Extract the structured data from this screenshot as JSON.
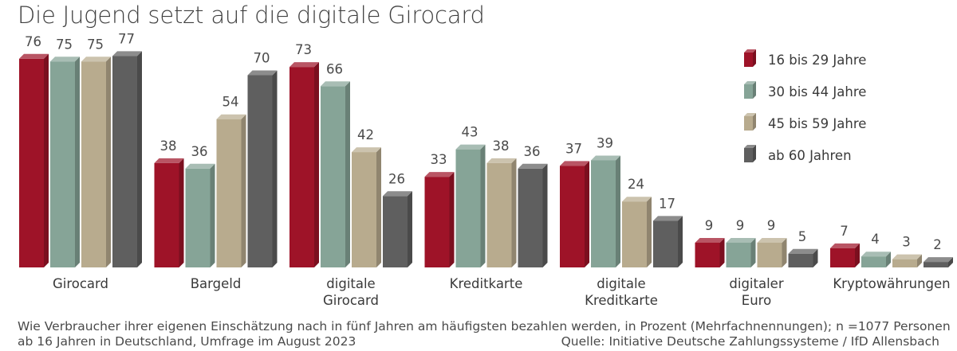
{
  "title": "Die Jugend setzt auf die digitale Girocard",
  "footnote": {
    "line1": "Wie Verbraucher ihrer eigenen Einschätzung nach in fünf Jahren am häufigsten bezahlen werden, in Prozent (Mehrfachnennungen); n =1077 Personen",
    "line2": "ab 16 Jahren in Deutschland, Umfrage im August 2023",
    "source": "Quelle: Initiative Deutsche Zahlungssysteme / IfD Allensbach"
  },
  "chart_data": {
    "type": "bar",
    "title": "Die Jugend setzt auf die digitale Girocard",
    "categories": [
      [
        "Girocard"
      ],
      [
        "Bargeld"
      ],
      [
        "digitale",
        "Girocard"
      ],
      [
        "Kreditkarte"
      ],
      [
        "digitale",
        "Kreditkarte"
      ],
      [
        "digitaler",
        "Euro"
      ],
      [
        "Kryptowährungen"
      ]
    ],
    "series": [
      {
        "name": "16 bis 29 Jahre",
        "color": "#9e1328",
        "values": [
          76,
          38,
          73,
          33,
          37,
          9,
          7
        ]
      },
      {
        "name": "30 bis 44 Jahre",
        "color": "#86a497",
        "values": [
          75,
          36,
          66,
          43,
          39,
          9,
          4
        ]
      },
      {
        "name": "45 bis 59 Jahre",
        "color": "#b8ab8e",
        "values": [
          75,
          54,
          42,
          38,
          24,
          9,
          3
        ]
      },
      {
        "name": "ab 60 Jahren",
        "color": "#5f5f5f",
        "values": [
          77,
          70,
          26,
          36,
          17,
          5,
          2
        ]
      }
    ],
    "ylim": [
      0,
      100
    ],
    "legend_position": "top-right",
    "grid": false
  }
}
